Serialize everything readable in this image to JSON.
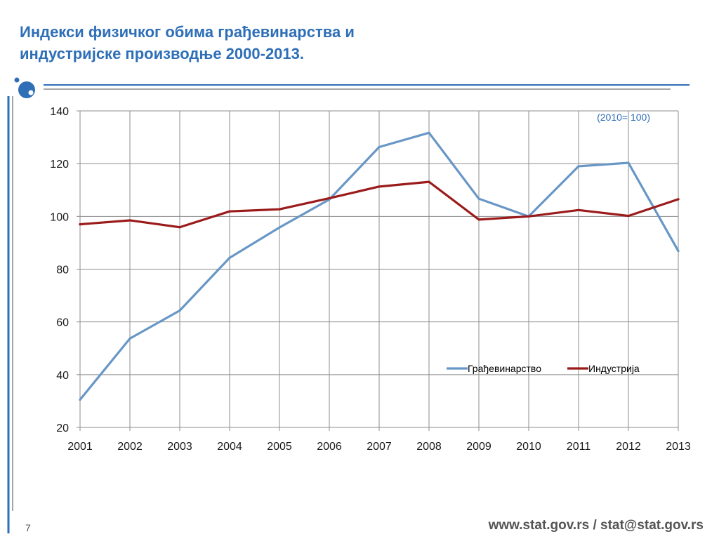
{
  "slide": {
    "title_line1": "Индекси физичког обима грађевинарства и",
    "title_line2": "индустријске производње 2000-2013.",
    "page_number": "7",
    "footer": "www.stat.gov.rs / stat@stat.gov.rs",
    "colors": {
      "title": "#2e6fb7",
      "accent": "#2e6fb7",
      "rule_gray": "#a6a6a6"
    }
  },
  "chart_data": {
    "type": "line",
    "categories": [
      "2001",
      "2002",
      "2003",
      "2004",
      "2005",
      "2006",
      "2007",
      "2008",
      "2009",
      "2010",
      "2011",
      "2012",
      "2013"
    ],
    "series": [
      {
        "name": "Грађевинарство",
        "color": "#6897c6",
        "values": [
          30.5,
          53.7,
          64.3,
          84.3,
          95.8,
          106.4,
          126.3,
          131.7,
          106.7,
          100,
          119,
          120.3,
          86.9
        ]
      },
      {
        "name": "Индустрија",
        "color": "#9b1b1b",
        "values": [
          97,
          98.5,
          95.9,
          101.9,
          102.7,
          106.9,
          111.3,
          113.1,
          98.8,
          100,
          102.4,
          100.2,
          106.5
        ]
      }
    ],
    "ylim": [
      20,
      140
    ],
    "yticks": [
      20,
      40,
      60,
      80,
      100,
      120,
      140
    ],
    "annotation": "(2010= 100)",
    "grid": true,
    "legend_position": "lower-right",
    "title": "",
    "xlabel": "",
    "ylabel": ""
  }
}
